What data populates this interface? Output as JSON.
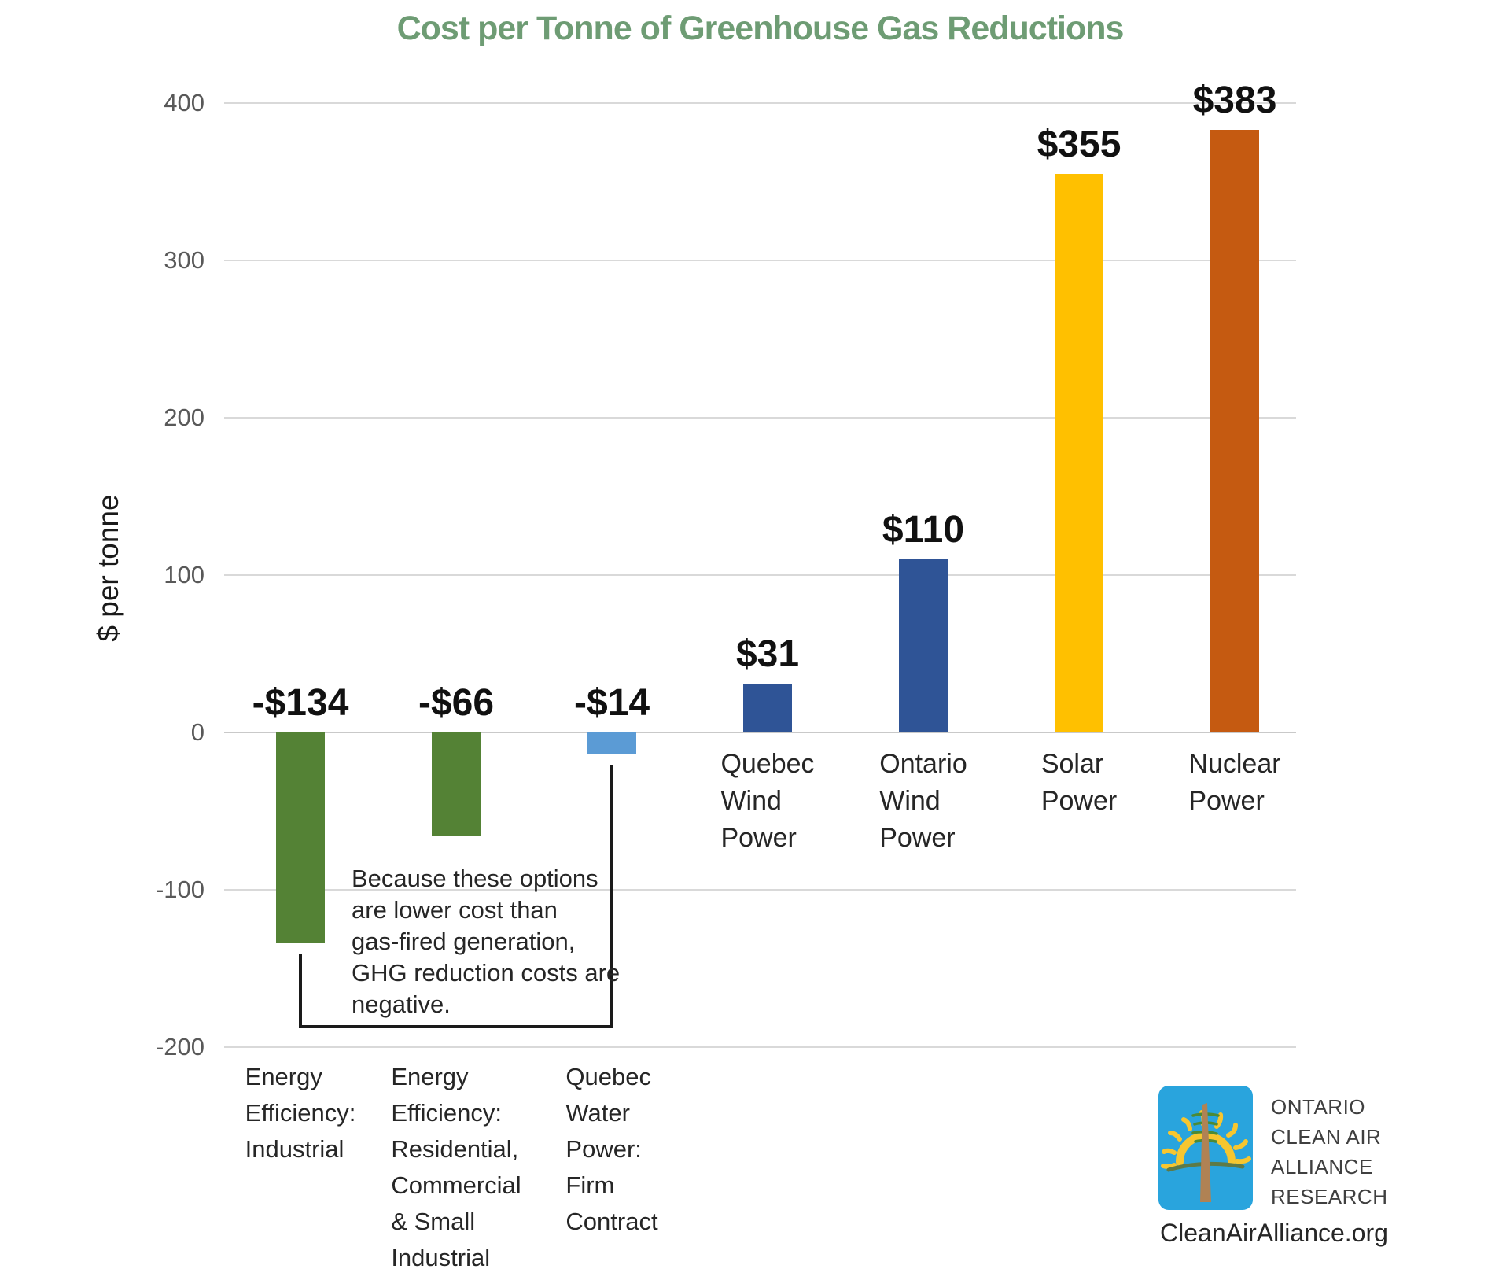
{
  "chart_data": {
    "type": "bar",
    "title": "Cost per Tonne of Greenhouse Gas Reductions",
    "xlabel": "",
    "ylabel": "$ per tonne",
    "ylim": [
      -200,
      400
    ],
    "yticks": [
      400,
      300,
      200,
      100,
      0,
      -100,
      -200
    ],
    "grid": true,
    "legend": "none",
    "categories": [
      "Energy Efficiency: Industrial",
      "Energy Efficiency: Residential, Commercial & Small Industrial",
      "Quebec Water Power: Firm Contract",
      "Quebec Wind Power",
      "Ontario Wind Power",
      "Solar Power",
      "Nuclear Power"
    ],
    "bars": [
      {
        "id": "ee-industrial",
        "label_lines": "Energy\nEfficiency:\nIndustrial",
        "value": -134,
        "value_label": "-$134",
        "color": "#548235",
        "label_zone": "bottom"
      },
      {
        "id": "ee-residential",
        "label_lines": "Energy\nEfficiency:\nResidential,\nCommercial\n& Small\nIndustrial",
        "value": -66,
        "value_label": "-$66",
        "color": "#548235",
        "label_zone": "bottom"
      },
      {
        "id": "quebec-water",
        "label_lines": "Quebec\nWater\nPower:\nFirm\nContract",
        "value": -14,
        "value_label": "-$14",
        "color": "#5B9BD5",
        "label_zone": "bottom"
      },
      {
        "id": "quebec-wind",
        "label_lines": "Quebec\nWind\nPower",
        "value": 31,
        "value_label": "$31",
        "color": "#2F5496",
        "label_zone": "axis"
      },
      {
        "id": "ontario-wind",
        "label_lines": "Ontario\nWind\nPower",
        "value": 110,
        "value_label": "$110",
        "color": "#2F5496",
        "label_zone": "axis"
      },
      {
        "id": "solar",
        "label_lines": "Solar\nPower",
        "value": 355,
        "value_label": "$355",
        "color": "#FFC000",
        "label_zone": "axis"
      },
      {
        "id": "nuclear",
        "label_lines": "Nuclear\nPower",
        "value": 383,
        "value_label": "$383",
        "color": "#C55A11",
        "label_zone": "axis"
      }
    ],
    "annotation": "Because these options\nare lower cost than\ngas-fired generation,\nGHG reduction costs are\nnegative."
  },
  "colors": {
    "title_green": "#6E9C74",
    "grid": "#D9D9D9",
    "zero_line": "#C9C9C9",
    "tick_text": "#595959",
    "category_text": "#262626",
    "value_text": "#111111",
    "bracket": "#1A1A1A",
    "logo_blue": "#29A4DD",
    "logo_yellow": "#F6C62F",
    "logo_trunk_brown": "#B08254",
    "logo_branch_green": "#4C8A35",
    "logo_ground_green": "#5D7A47"
  },
  "footer": {
    "org_lines": "ONTARIO\nCLEAN AIR\nALLIANCE\nRESEARCH",
    "url": "CleanAirAlliance.org"
  }
}
